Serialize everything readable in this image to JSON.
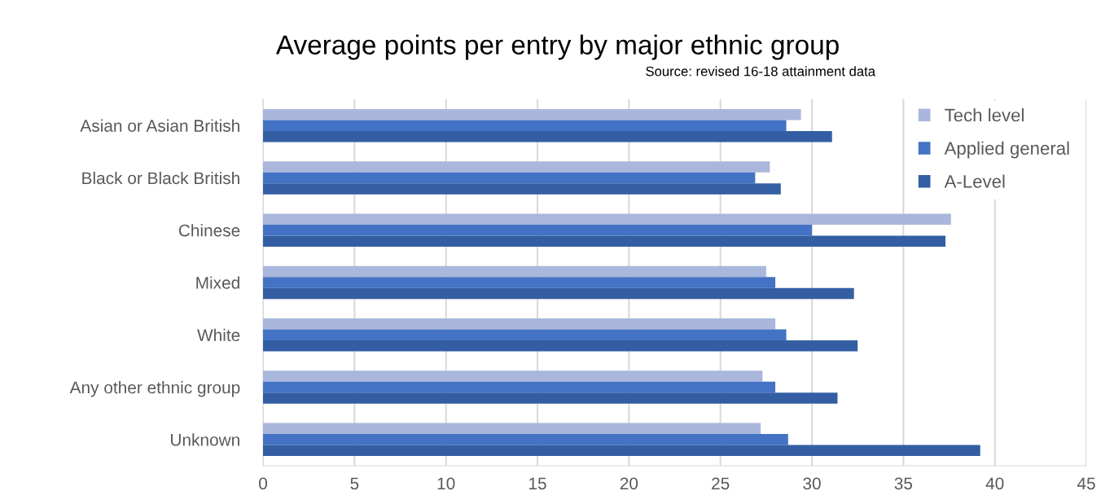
{
  "chart_data": {
    "type": "bar",
    "orientation": "horizontal",
    "title": "Average points per entry by major ethnic group",
    "subtitle": "Source: revised 16-18 attainment data",
    "categories": [
      "Asian or Asian British",
      "Black or Black British",
      "Chinese",
      "Mixed",
      "White",
      "Any other ethnic group",
      "Unknown"
    ],
    "series": [
      {
        "name": "Tech level",
        "color": "#a9b7dc",
        "values": [
          29.4,
          27.7,
          37.6,
          27.5,
          28.0,
          27.3,
          27.2
        ]
      },
      {
        "name": "Applied general",
        "color": "#4472c4",
        "values": [
          28.6,
          26.9,
          30.0,
          28.0,
          28.6,
          28.0,
          28.7
        ]
      },
      {
        "name": "A-Level",
        "color": "#335ea3",
        "values": [
          31.1,
          28.3,
          37.3,
          32.3,
          32.5,
          31.4,
          39.2
        ]
      }
    ],
    "xlim": [
      0,
      45
    ],
    "xticks": [
      0,
      5,
      10,
      15,
      20,
      25,
      30,
      35,
      40,
      45
    ],
    "grid": "x",
    "legend": "top right"
  }
}
